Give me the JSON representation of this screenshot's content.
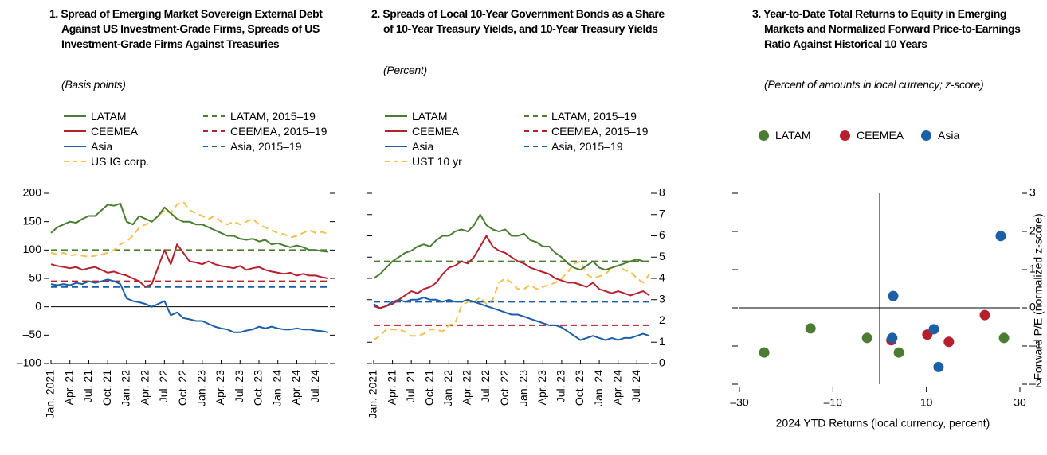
{
  "chart_data": [
    {
      "type": "line",
      "title": "1. Spread of Emerging Market Sovereign External Debt Against US Investment-Grade Firms, Spreads of US Investment-Grade Firms Against Treasuries",
      "subtitle": "(Basis points)",
      "categories": [
        "Jan. 2021",
        null,
        null,
        "Apr. 21",
        null,
        null,
        "Jul. 21",
        null,
        null,
        "Oct. 21",
        null,
        null,
        "Jan. 22",
        null,
        null,
        "Apr. 22",
        null,
        null,
        "Jul. 22",
        null,
        null,
        "Oct. 22",
        null,
        null,
        "Jan. 23",
        null,
        null,
        "Apr. 23",
        null,
        null,
        "Jul. 23",
        null,
        null,
        "Oct. 23",
        null,
        null,
        "Jan. 24",
        null,
        null,
        "Apr. 24",
        null,
        null,
        "Jul. 24",
        null,
        null
      ],
      "series": [
        {
          "name": "LATAM",
          "color": "#4a7d32",
          "values": [
            130,
            140,
            145,
            150,
            148,
            155,
            160,
            160,
            170,
            180,
            178,
            182,
            150,
            145,
            160,
            155,
            150,
            160,
            175,
            165,
            155,
            150,
            150,
            145,
            145,
            140,
            135,
            130,
            125,
            125,
            120,
            118,
            120,
            115,
            118,
            110,
            112,
            108,
            105,
            108,
            105,
            100,
            100,
            98,
            97
          ]
        },
        {
          "name": "CEEMEA",
          "color": "#b5202e",
          "values": [
            75,
            72,
            70,
            68,
            70,
            65,
            68,
            70,
            65,
            60,
            62,
            58,
            55,
            50,
            45,
            35,
            40,
            70,
            100,
            75,
            110,
            95,
            80,
            78,
            75,
            80,
            75,
            72,
            70,
            68,
            72,
            65,
            68,
            70,
            65,
            62,
            60,
            58,
            60,
            55,
            58,
            55,
            55,
            52,
            50
          ]
        },
        {
          "name": "Asia",
          "color": "#1a5fa8",
          "values": [
            40,
            38,
            40,
            38,
            42,
            40,
            45,
            42,
            45,
            48,
            45,
            40,
            15,
            10,
            8,
            5,
            0,
            5,
            10,
            -15,
            -10,
            -20,
            -22,
            -25,
            -25,
            -30,
            -35,
            -38,
            -40,
            -45,
            -45,
            -42,
            -40,
            -35,
            -38,
            -35,
            -38,
            -40,
            -40,
            -38,
            -40,
            -40,
            -42,
            -43,
            -45
          ]
        },
        {
          "name": "US IG corp.",
          "color": "#f2c14e",
          "dashed": true,
          "values": [
            95,
            92,
            95,
            90,
            92,
            90,
            88,
            90,
            92,
            95,
            100,
            110,
            115,
            125,
            140,
            145,
            150,
            160,
            170,
            165,
            180,
            185,
            170,
            165,
            160,
            155,
            160,
            150,
            145,
            150,
            145,
            150,
            155,
            145,
            140,
            135,
            130,
            128,
            122,
            125,
            130,
            135,
            130,
            132,
            128
          ]
        },
        {
          "name": "LATAM, 2015–19",
          "color": "#4a7d32",
          "dashed": true,
          "value": 100
        },
        {
          "name": "CEEMEA, 2015–19",
          "color": "#b5202e",
          "dashed": true,
          "value": 45
        },
        {
          "name": "Asia, 2015–19",
          "color": "#1a5fa8",
          "dashed": true,
          "value": 35
        }
      ],
      "ylim": [
        -100,
        200
      ],
      "yticks": [
        {
          "value": -100,
          "label": "–100"
        },
        {
          "value": -50,
          "label": "–50"
        },
        0,
        50,
        100,
        150,
        200
      ],
      "ytick_labels": "left",
      "zero_line": true
    },
    {
      "type": "line",
      "title": "2. Spreads of Local 10-Year Government Bonds as a Share of 10-Year Treasury Yields, and 10-Year Treasury Yields",
      "subtitle": "(Percent)",
      "categories": [
        "Jan. 2021",
        null,
        null,
        "Apr. 21",
        null,
        null,
        "Jul. 21",
        null,
        null,
        "Oct. 21",
        null,
        null,
        "Jan. 22",
        null,
        null,
        "Apr. 22",
        null,
        null,
        "Jul. 22",
        null,
        null,
        "Oct. 22",
        null,
        null,
        "Jan. 23",
        null,
        null,
        "Apr. 23",
        null,
        null,
        "Jul. 23",
        null,
        null,
        "Oct. 23",
        null,
        null,
        "Jan. 24",
        null,
        null,
        "Apr. 24",
        null,
        null,
        "Jul. 24",
        null,
        null
      ],
      "series": [
        {
          "name": "LATAM",
          "color": "#4a7d32",
          "values": [
            4.0,
            4.2,
            4.5,
            4.8,
            5.0,
            5.2,
            5.3,
            5.5,
            5.6,
            5.5,
            5.8,
            6.0,
            6.0,
            6.2,
            6.3,
            6.2,
            6.5,
            7.0,
            6.5,
            6.3,
            6.2,
            6.3,
            6.0,
            6.0,
            6.1,
            5.8,
            5.7,
            5.5,
            5.5,
            5.2,
            5.0,
            4.7,
            4.5,
            4.4,
            4.6,
            4.8,
            4.5,
            4.4,
            4.5,
            4.6,
            4.7,
            4.8,
            4.9,
            4.8,
            4.8
          ]
        },
        {
          "name": "CEEMEA",
          "color": "#b5202e",
          "values": [
            2.7,
            2.6,
            2.7,
            2.8,
            3.0,
            3.2,
            3.4,
            3.3,
            3.5,
            3.6,
            3.8,
            4.2,
            4.5,
            4.6,
            4.8,
            4.7,
            5.0,
            5.5,
            6.0,
            5.5,
            5.3,
            5.2,
            5.0,
            4.8,
            4.7,
            4.5,
            4.4,
            4.3,
            4.2,
            4.0,
            3.9,
            3.8,
            3.8,
            3.7,
            3.6,
            3.8,
            3.5,
            3.4,
            3.3,
            3.4,
            3.3,
            3.2,
            3.3,
            3.4,
            3.2
          ]
        },
        {
          "name": "Asia",
          "color": "#1a5fa8",
          "values": [
            2.8,
            2.6,
            2.7,
            2.9,
            3.0,
            2.9,
            3.0,
            3.0,
            3.1,
            3.0,
            3.0,
            2.9,
            3.0,
            2.9,
            2.9,
            3.0,
            2.9,
            2.8,
            2.7,
            2.6,
            2.5,
            2.4,
            2.3,
            2.3,
            2.2,
            2.1,
            2.0,
            1.9,
            1.8,
            1.8,
            1.7,
            1.5,
            1.3,
            1.1,
            1.2,
            1.3,
            1.2,
            1.1,
            1.2,
            1.1,
            1.2,
            1.2,
            1.3,
            1.4,
            1.3
          ]
        },
        {
          "name": "UST 10 yr",
          "color": "#f2c14e",
          "dashed": true,
          "values": [
            1.1,
            1.3,
            1.6,
            1.6,
            1.6,
            1.5,
            1.3,
            1.3,
            1.4,
            1.6,
            1.6,
            1.5,
            1.8,
            1.9,
            2.7,
            2.9,
            2.9,
            3.1,
            2.8,
            3.0,
            3.8,
            4.0,
            3.8,
            3.5,
            3.5,
            3.7,
            3.5,
            3.6,
            3.7,
            3.8,
            4.0,
            4.3,
            4.7,
            4.8,
            4.2,
            4.0,
            4.1,
            4.2,
            4.5,
            4.6,
            4.4,
            4.3,
            4.0,
            3.8,
            4.2
          ]
        },
        {
          "name": "LATAM, 2015–19",
          "color": "#4a7d32",
          "dashed": true,
          "value": 4.8
        },
        {
          "name": "CEEMEA, 2015–19",
          "color": "#b5202e",
          "dashed": true,
          "value": 1.8
        },
        {
          "name": "Asia, 2015–19",
          "color": "#1a5fa8",
          "dashed": true,
          "value": 2.9
        }
      ],
      "ylim": [
        0,
        8
      ],
      "yticks": [
        0,
        1,
        2,
        3,
        4,
        5,
        6,
        7,
        8
      ],
      "ytick_labels": "right",
      "zero_line": false
    },
    {
      "type": "scatter",
      "title": "3. Year-to-Date Total Returns to Equity in Emerging Markets and Normalized Forward Price-to-Earnings Ratio Against Historical 10 Years",
      "subtitle": "(Percent of amounts in local currency; z-score)",
      "xlabel": "2024 YTD Returns (local currency, percent)",
      "ylabel": "Forward P/E (normalized z-score)",
      "series": [
        {
          "name": "LATAM",
          "color": "#4a7d32",
          "x": [
            -24.7,
            -14.8,
            -2.7,
            4.1,
            26.6
          ],
          "y": [
            -1.17,
            -0.54,
            -0.79,
            -1.17,
            -0.79
          ]
        },
        {
          "name": "CEEMEA",
          "color": "#b5202e",
          "x": [
            2.5,
            10.2,
            14.8,
            22.5
          ],
          "y": [
            -0.85,
            -0.7,
            -0.89,
            -0.19
          ]
        },
        {
          "name": "Asia",
          "color": "#1a5fa8",
          "x": [
            2.7,
            2.9,
            11.6,
            12.6,
            25.9
          ],
          "y": [
            -0.79,
            0.31,
            -0.56,
            -1.55,
            1.88
          ]
        }
      ],
      "xlim": [
        -30,
        30
      ],
      "xticks": [
        {
          "value": -30,
          "label": "–30"
        },
        {
          "value": -10,
          "label": "–10"
        },
        10,
        30
      ],
      "ylim": [
        -2,
        3
      ],
      "yticks": [
        {
          "value": -2,
          "label": "–2"
        },
        {
          "value": -1,
          "label": "–1"
        },
        0,
        1,
        2,
        3
      ],
      "ytick_labels": "right"
    }
  ]
}
